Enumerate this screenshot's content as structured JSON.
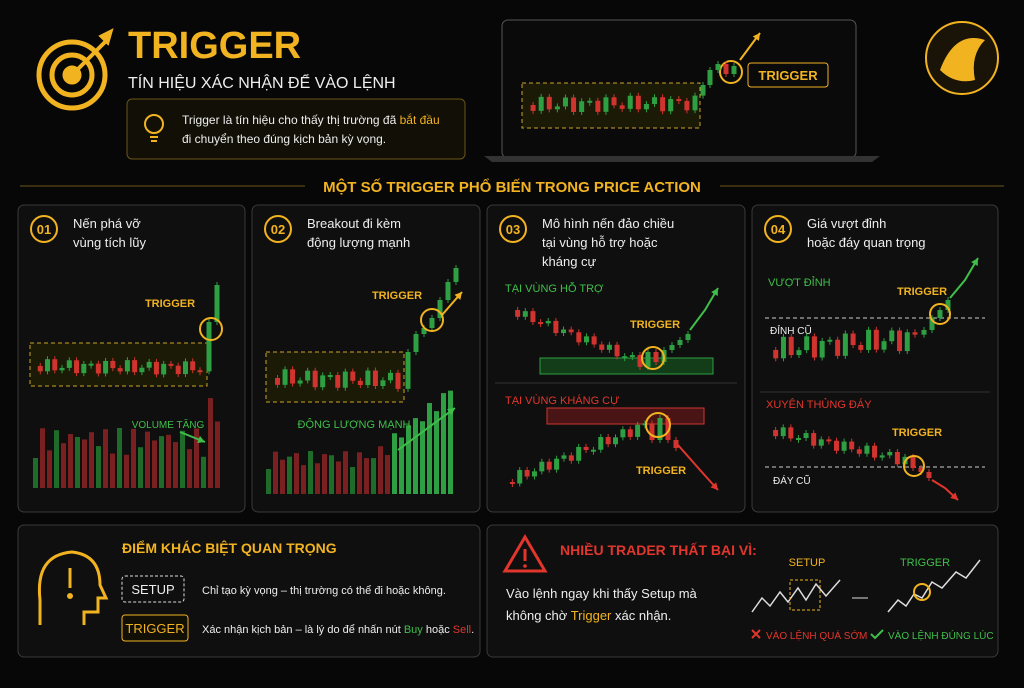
{
  "header": {
    "title": "TRIGGER",
    "subtitle": "TÍN HIỆU XÁC NHẬN ĐỂ VÀO LỆNH",
    "description": {
      "line1": "Trigger là tín hiệu cho thấy thị trường đã",
      "highlight": "bắt đầu",
      "line2": "đi chuyển theo đúng kịch bản kỳ vọng."
    },
    "hero_label": "TRIGGER"
  },
  "section_title": "MỘT SỐ TRIGGER PHỔ BIẾN TRONG PRICE ACTION",
  "cards": [
    {
      "number": "01",
      "title": [
        "Nến phá vỡ",
        "vùng tích lũy"
      ],
      "labels": [
        "TRIGGER",
        "VOLUME TĂNG"
      ]
    },
    {
      "number": "02",
      "title": [
        "Breakout đi kèm",
        "động lượng mạnh"
      ],
      "labels": [
        "TRIGGER",
        "ĐỘNG LƯỢNG MẠNH"
      ]
    },
    {
      "number": "03",
      "title": [
        "Mô hình nến đảo chiều",
        "tại vùng hỗ trợ hoặc",
        "kháng cự"
      ],
      "labels": [
        "TẠI VÙNG HỖ TRỢ",
        "TRIGGER",
        "TẠI VÙNG KHÁNG CỰ",
        "TRIGGER"
      ]
    },
    {
      "number": "04",
      "title": [
        "Giá vượt đỉnh",
        "hoặc đáy quan trọng"
      ],
      "labels": [
        "VƯỢT ĐỈNH",
        "TRIGGER",
        "ĐỈNH CŨ",
        "XUYÊN THỦNG ĐÁY",
        "TRIGGER",
        "ĐÁY CŨ"
      ]
    }
  ],
  "difference": {
    "title": "ĐIỂM KHÁC BIỆT QUAN TRỌNG",
    "setup": {
      "tag": "SETUP",
      "text": "Chỉ tạo kỳ vọng – thị trường có thể đi hoặc không."
    },
    "trigger": {
      "tag": "TRIGGER",
      "text": "Xác nhận kịch bản – là lý do để nhấn nút",
      "buy": "Buy",
      "or": "hoặc",
      "sell": "Sell",
      "end": "."
    }
  },
  "warning": {
    "title": "NHIỀU TRADER THẤT BẠI VÌ:",
    "line1": "Vào lệnh ngay khi thấy Setup mà",
    "line2a": "không chờ",
    "line2b": "Trigger",
    "line2c": "xác nhận.",
    "setup_label": "SETUP",
    "trigger_label": "TRIGGER",
    "wrong": "VÀO LỆNH QUÁ SỚM",
    "right": "VÀO LỆNH ĐÚNG LÚC"
  }
}
